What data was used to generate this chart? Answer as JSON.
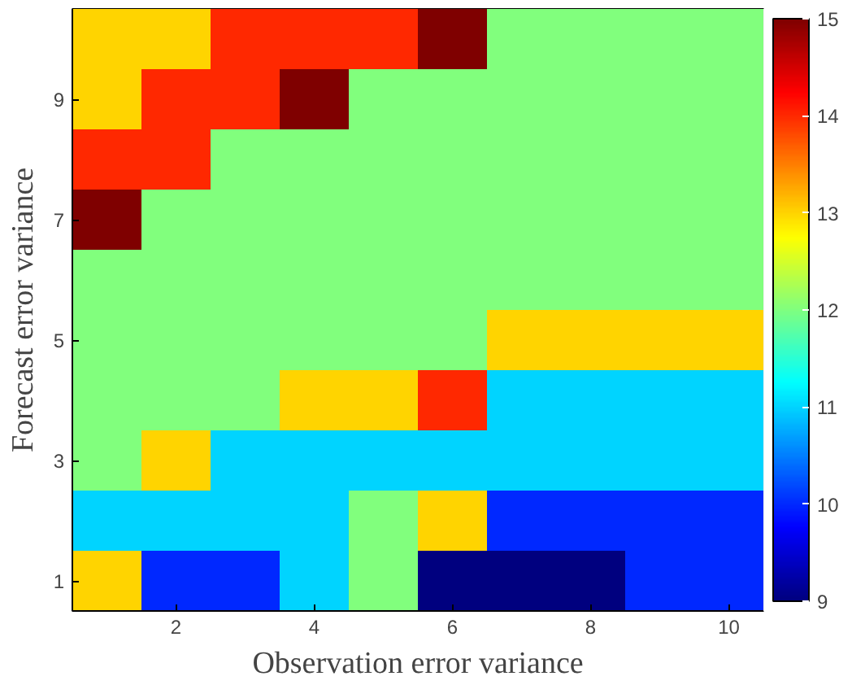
{
  "chart_data": {
    "type": "heatmap",
    "xlabel": "Observation error variance",
    "ylabel": "Forecast error variance",
    "categories": [
      null,
      "2",
      null,
      "4",
      null,
      "6",
      null,
      "8",
      null,
      "10"
    ],
    "y_categories": [
      null,
      "9",
      null,
      "7",
      null,
      "5",
      null,
      "3",
      null,
      "1"
    ],
    "cells": [
      [
        13,
        13,
        14,
        14,
        14,
        15,
        12,
        12,
        12,
        12
      ],
      [
        13,
        14,
        14,
        15,
        12,
        12,
        12,
        12,
        12,
        12
      ],
      [
        14,
        14,
        12,
        12,
        12,
        12,
        12,
        12,
        12,
        12
      ],
      [
        15,
        12,
        12,
        12,
        12,
        12,
        12,
        12,
        12,
        12
      ],
      [
        12,
        12,
        12,
        12,
        12,
        12,
        12,
        12,
        12,
        12
      ],
      [
        12,
        12,
        12,
        12,
        12,
        12,
        13,
        13,
        13,
        13
      ],
      [
        12,
        12,
        12,
        13,
        13,
        14,
        11,
        11,
        11,
        11
      ],
      [
        12,
        13,
        11,
        11,
        11,
        11,
        11,
        11,
        11,
        11
      ],
      [
        11,
        11,
        11,
        11,
        12,
        13,
        10,
        10,
        10,
        10
      ],
      [
        13,
        10,
        10,
        11,
        12,
        9,
        9,
        9,
        10,
        10
      ]
    ],
    "clim": [
      9,
      15
    ],
    "cticks": [
      9,
      10,
      11,
      12,
      13,
      14,
      15
    ]
  }
}
